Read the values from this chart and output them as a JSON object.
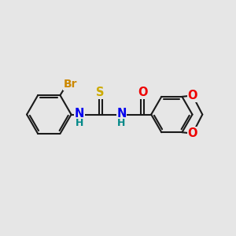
{
  "bg_color": "#e6e6e6",
  "bond_color": "#1a1a1a",
  "bond_width": 1.5,
  "atom_colors": {
    "Br": "#cc8800",
    "S": "#ccaa00",
    "N": "#0000ee",
    "O": "#ee0000",
    "H": "#008888",
    "C": "#1a1a1a"
  },
  "font_size": 10.5
}
